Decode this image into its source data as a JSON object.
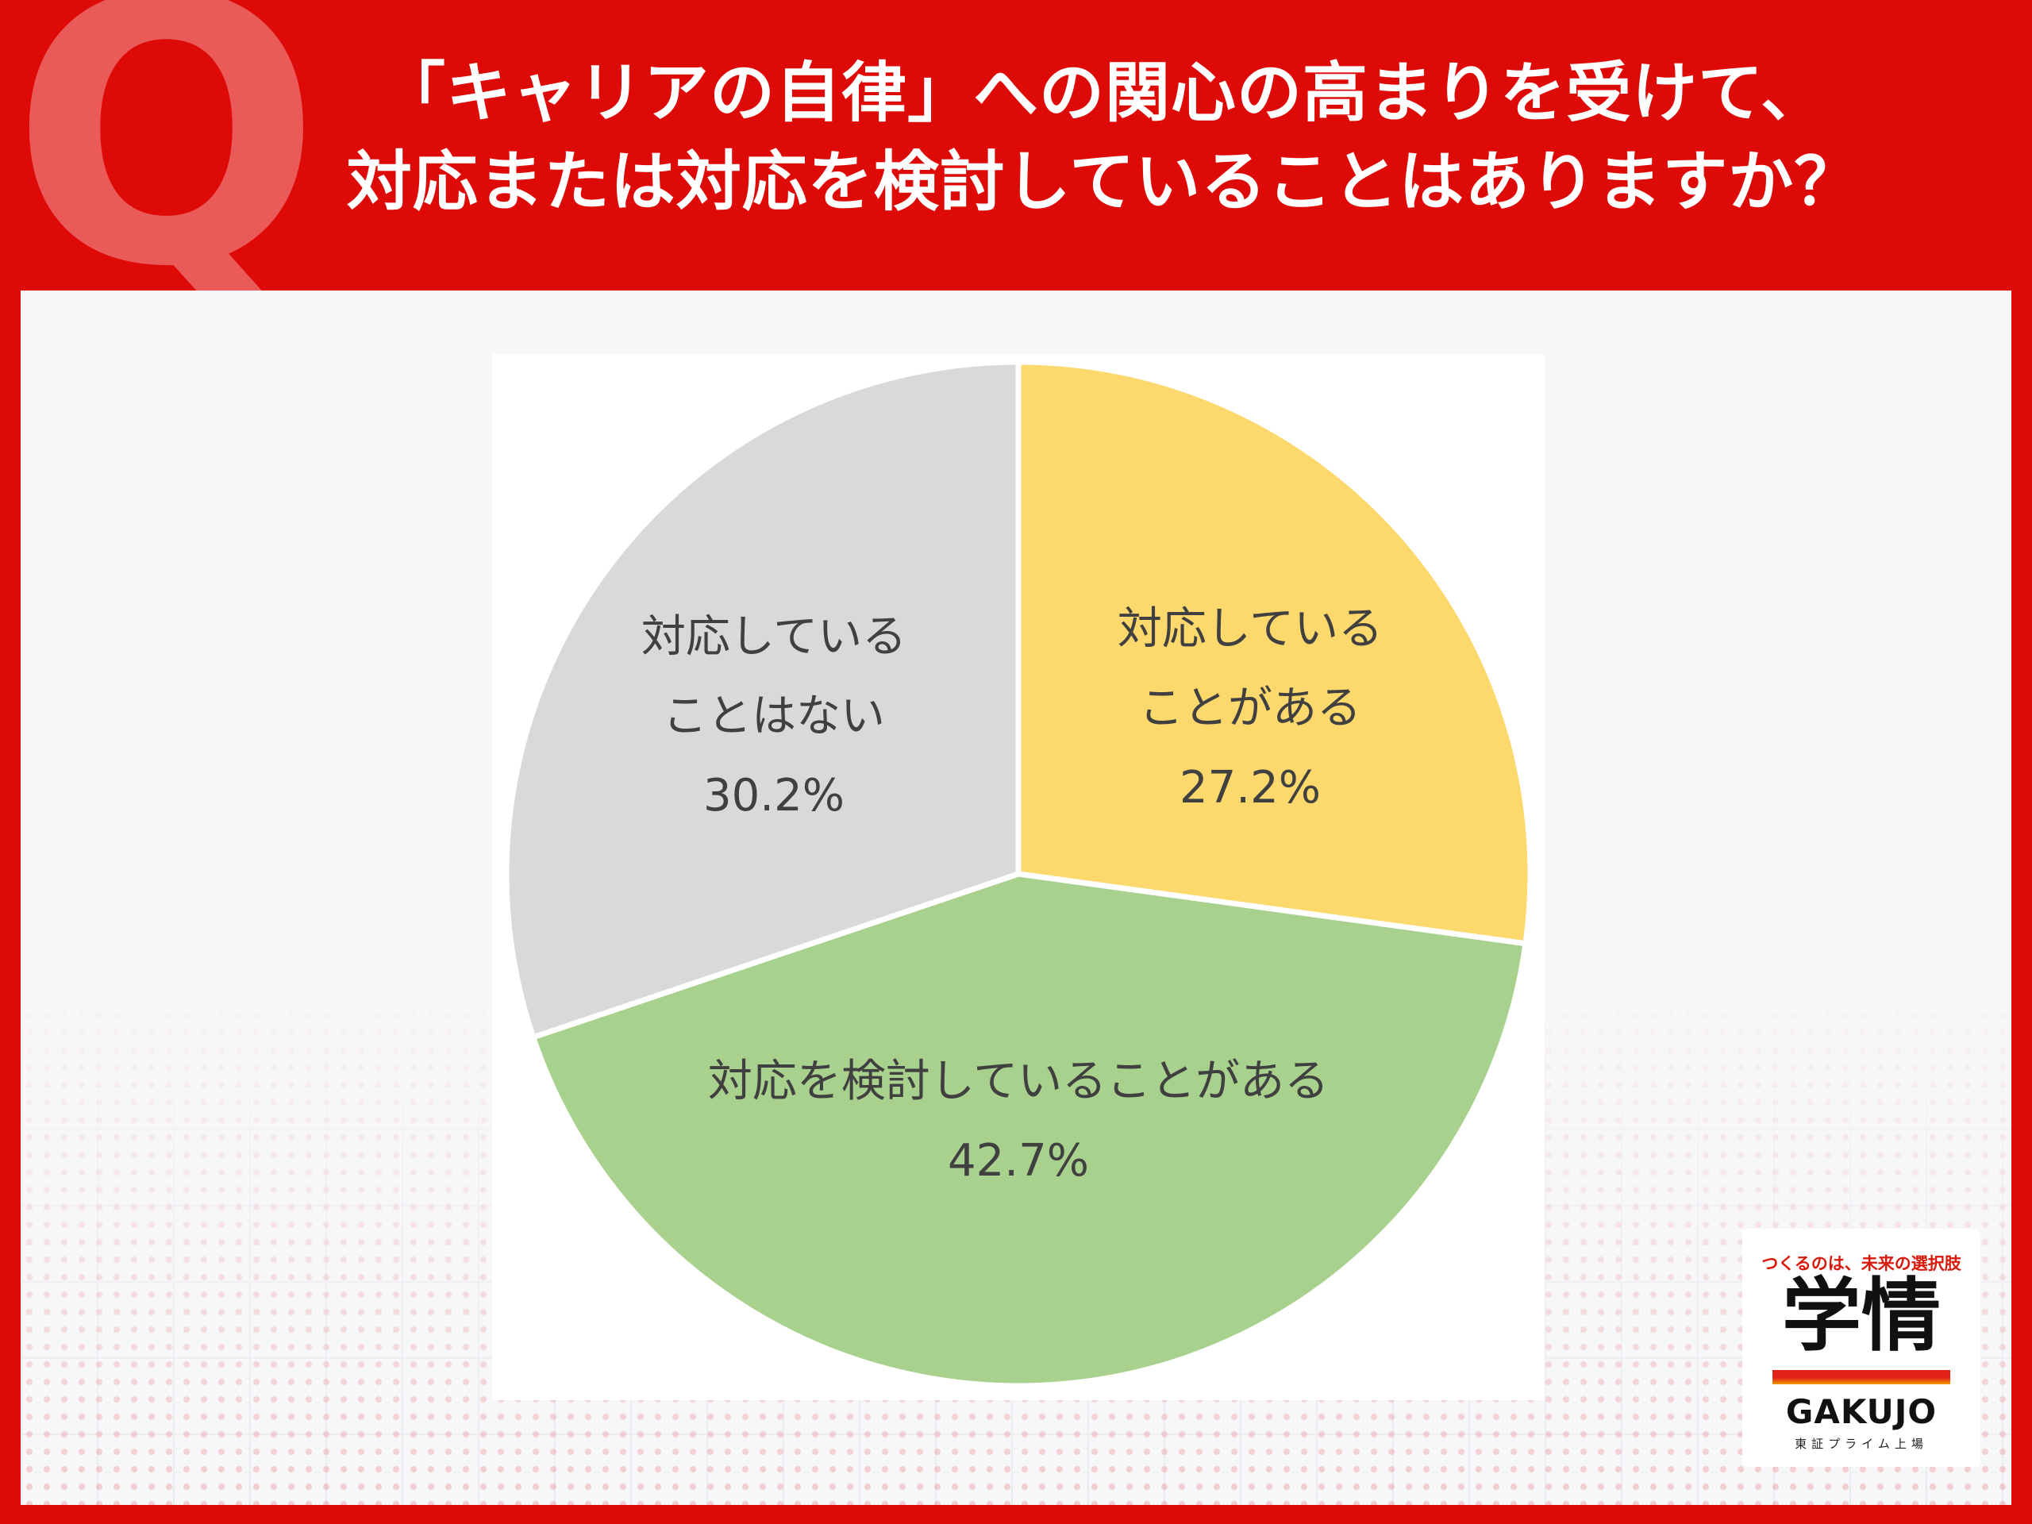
{
  "header": {
    "q_mark": "Q",
    "title_line1": "「キャリアの自律」への関心の高まりを受けて、",
    "title_line2": "対応または対応を検討していることはありますか？"
  },
  "chart_data": {
    "type": "pie",
    "slices": [
      {
        "label": "対応している\nことがある",
        "value": 27.2,
        "value_label": "27.2%",
        "color": "#fdd86c"
      },
      {
        "label": "対応を検討していることがある",
        "value": 42.7,
        "value_label": "42.7%",
        "color": "#a8d18d"
      },
      {
        "label": "対応している\nことはない",
        "value": 30.2,
        "value_label": "30.2%",
        "color": "#d9d9d9"
      }
    ],
    "start_angle": "12 o'clock",
    "direction": "clockwise",
    "legend": "none"
  },
  "logo": {
    "tagline": "つくるのは、未来の選択肢",
    "brand_kanji": "学情",
    "brand_latin": "GAKUJO",
    "brand_sub": "東証プライム上場"
  },
  "colors": {
    "background_red": "#dd0a08",
    "q_mark": "#ea5a58",
    "label_text": "#404040"
  }
}
